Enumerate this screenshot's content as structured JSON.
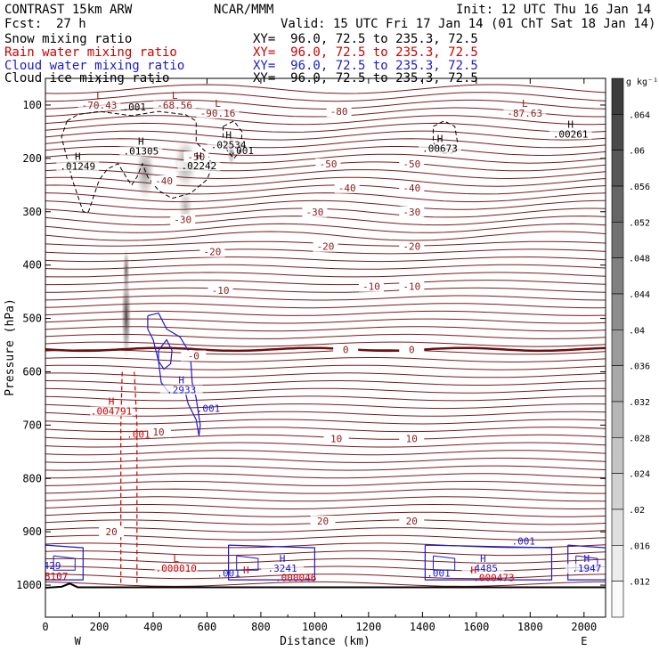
{
  "header": {
    "model": "CONTRAST 15km ARW",
    "center": "NCAR/MMM",
    "init": "Init: 12 UTC Thu 16 Jan 14",
    "fcst_label": "Fcst:",
    "fcst_value": "27 h",
    "valid": "Valid: 15 UTC Fri 17 Jan 14 (01 ChT Sat 18 Jan 14)",
    "fields": [
      {
        "name": "Snow mixing ratio",
        "xy": "XY=  96.0, 72.5 to 235.3, 72.5",
        "color": "#000000"
      },
      {
        "name": "Rain water mixing ratio",
        "xy": "XY=  96.0, 72.5 to 235.3, 72.5",
        "color": "#cc0000"
      },
      {
        "name": "Cloud water mixing ratio",
        "xy": "XY=  96.0, 72.5 to 235.3, 72.5",
        "color": "#1a1acc"
      },
      {
        "name": "Cloud ice mixing ratio",
        "xy": "XY=  96.0, 72.5 to 235.3, 72.5",
        "color": "#000000"
      }
    ]
  },
  "chart_data": {
    "type": "heatmap",
    "title": "CONTRAST 15km ARW",
    "xlabel": "Distance (km)",
    "ylabel": "Pressure (hPa)",
    "xlim": [
      0,
      2080
    ],
    "ylim": [
      1060,
      50
    ],
    "x_ticks": [
      0,
      200,
      400,
      600,
      800,
      1000,
      1200,
      1400,
      1600,
      1800,
      2000
    ],
    "y_ticks": [
      100,
      200,
      300,
      400,
      500,
      600,
      700,
      800,
      900,
      1000
    ],
    "direction_labels": {
      "left": "W",
      "right": "E"
    },
    "colorbar": {
      "unit": "g kg⁻¹",
      "ticks": [
        ".064",
        ".06",
        ".056",
        ".052",
        ".048",
        ".044",
        ".04",
        ".036",
        ".032",
        ".028",
        ".024",
        ".02",
        ".016",
        ".012"
      ]
    },
    "temperature_levels": [
      {
        "label": "-80",
        "x": 1090,
        "p": 112
      },
      {
        "label": "-50",
        "x": 1050,
        "p": 210
      },
      {
        "label": "-50",
        "x": 1360,
        "p": 210
      },
      {
        "label": "-40",
        "x": 1120,
        "p": 255
      },
      {
        "label": "-40",
        "x": 1360,
        "p": 255
      },
      {
        "label": "-30",
        "x": 1000,
        "p": 300
      },
      {
        "label": "-30",
        "x": 1360,
        "p": 300
      },
      {
        "label": "-20",
        "x": 1040,
        "p": 365
      },
      {
        "label": "-20",
        "x": 1360,
        "p": 365
      },
      {
        "label": "-10",
        "x": 1210,
        "p": 440
      },
      {
        "label": "-10",
        "x": 1360,
        "p": 440
      },
      {
        "label": "0",
        "x": 1115,
        "p": 558
      },
      {
        "label": "0",
        "x": 1360,
        "p": 558
      },
      {
        "label": "10",
        "x": 1080,
        "p": 725
      },
      {
        "label": "10",
        "x": 1360,
        "p": 725
      },
      {
        "label": "20",
        "x": 1030,
        "p": 880
      },
      {
        "label": "20",
        "x": 1360,
        "p": 880
      },
      {
        "label": "-40",
        "x": 440,
        "p": 242
      },
      {
        "label": "-30",
        "x": 510,
        "p": 315
      },
      {
        "label": "-20",
        "x": 620,
        "p": 375
      },
      {
        "label": "-10",
        "x": 650,
        "p": 447
      },
      {
        "label": "10",
        "x": 420,
        "p": 713
      },
      {
        "label": "20",
        "x": 245,
        "p": 900
      },
      {
        "label": "-50",
        "x": 560,
        "p": 197
      },
      {
        "label": "-0",
        "x": 550,
        "p": 570
      }
    ],
    "markers": [
      {
        "kind": "L",
        "value": "-70.43",
        "x": 200,
        "p": 92,
        "color": "#8b1a1a"
      },
      {
        "kind": "L",
        "value": "-68.56",
        "x": 480,
        "p": 92,
        "color": "#8b1a1a"
      },
      {
        "kind": "L",
        "value": "-90.16",
        "x": 640,
        "p": 107,
        "color": "#8b1a1a"
      },
      {
        "kind": "L",
        "value": "-87.63",
        "x": 1780,
        "p": 107,
        "color": "#8b1a1a"
      },
      {
        "kind": "H",
        "value": ".01305",
        "x": 355,
        "p": 178,
        "color": "#000000"
      },
      {
        "kind": "H",
        "value": ".02534",
        "x": 680,
        "p": 166,
        "color": "#000000"
      },
      {
        "kind": "H",
        "value": ".00673",
        "x": 1465,
        "p": 173,
        "color": "#000000"
      },
      {
        "kind": "H",
        "value": ".00261",
        "x": 1950,
        "p": 146,
        "color": "#000000"
      },
      {
        "kind": "H",
        "value": ".01249",
        "x": 120,
        "p": 206,
        "color": "#000000"
      },
      {
        "kind": "H",
        "value": ".02242",
        "x": 570,
        "p": 205,
        "color": "#000000"
      },
      {
        "kind": "H",
        "value": ".2933",
        "x": 505,
        "p": 625,
        "color": "#1a1acc"
      },
      {
        "kind": "H",
        "value": ".004791",
        "x": 245,
        "p": 665,
        "color": "#cc0000"
      },
      {
        "kind": "H",
        "value": ".3241",
        "x": 880,
        "p": 960,
        "color": "#1a1acc"
      },
      {
        "kind": "H",
        "value": ".4485",
        "x": 1625,
        "p": 960,
        "color": "#1a1acc"
      },
      {
        "kind": "H",
        "value": ".1947",
        "x": 2010,
        "p": 960,
        "color": "#1a1acc"
      },
      {
        "kind": "L",
        "value": ".000010",
        "x": 485,
        "p": 960,
        "color": "#cc0000"
      }
    ],
    "value_labels": [
      {
        "text": ".001",
        "x": 330,
        "p": 110,
        "color": "#000000"
      },
      {
        "text": ".001",
        "x": 730,
        "p": 192,
        "color": "#000000"
      },
      {
        "text": ".001",
        "x": 605,
        "p": 675,
        "color": "#1a1acc"
      },
      {
        "text": ".001",
        "x": 345,
        "p": 724,
        "color": "#cc0000"
      },
      {
        "text": ".001",
        "x": 1775,
        "p": 924,
        "color": "#1a1acc"
      },
      {
        "text": ".001",
        "x": 680,
        "p": 984,
        "color": "#1a1acc"
      },
      {
        "text": ".001",
        "x": 1460,
        "p": 984,
        "color": "#1a1acc"
      },
      {
        "text": ".000046",
        "x": 930,
        "p": 992,
        "color": "#cc0000"
      },
      {
        "text": ".000473",
        "x": 1665,
        "p": 992,
        "color": "#cc0000"
      },
      {
        "text": "429",
        "x": 25,
        "p": 970,
        "color": "#1a1acc"
      },
      {
        "text": "8107",
        "x": 40,
        "p": 990,
        "color": "#cc0000"
      },
      {
        "text": "H",
        "x": 745,
        "p": 978,
        "color": "#cc0000"
      },
      {
        "text": "H",
        "x": 1590,
        "p": 978,
        "color": "#cc0000"
      }
    ],
    "snow_shading": [
      {
        "x": 300,
        "p": 495,
        "rx": 20,
        "rp": 90,
        "max": 0.05
      },
      {
        "x": 300,
        "p": 410,
        "rx": 14,
        "rp": 45,
        "max": 0.04
      },
      {
        "x": 370,
        "p": 225,
        "rx": 40,
        "rp": 60,
        "max": 0.028
      },
      {
        "x": 520,
        "p": 210,
        "rx": 48,
        "rp": 55,
        "max": 0.026
      },
      {
        "x": 690,
        "p": 185,
        "rx": 16,
        "rp": 35,
        "max": 0.03
      },
      {
        "x": 520,
        "p": 290,
        "rx": 30,
        "rp": 35,
        "max": 0.02
      }
    ]
  }
}
